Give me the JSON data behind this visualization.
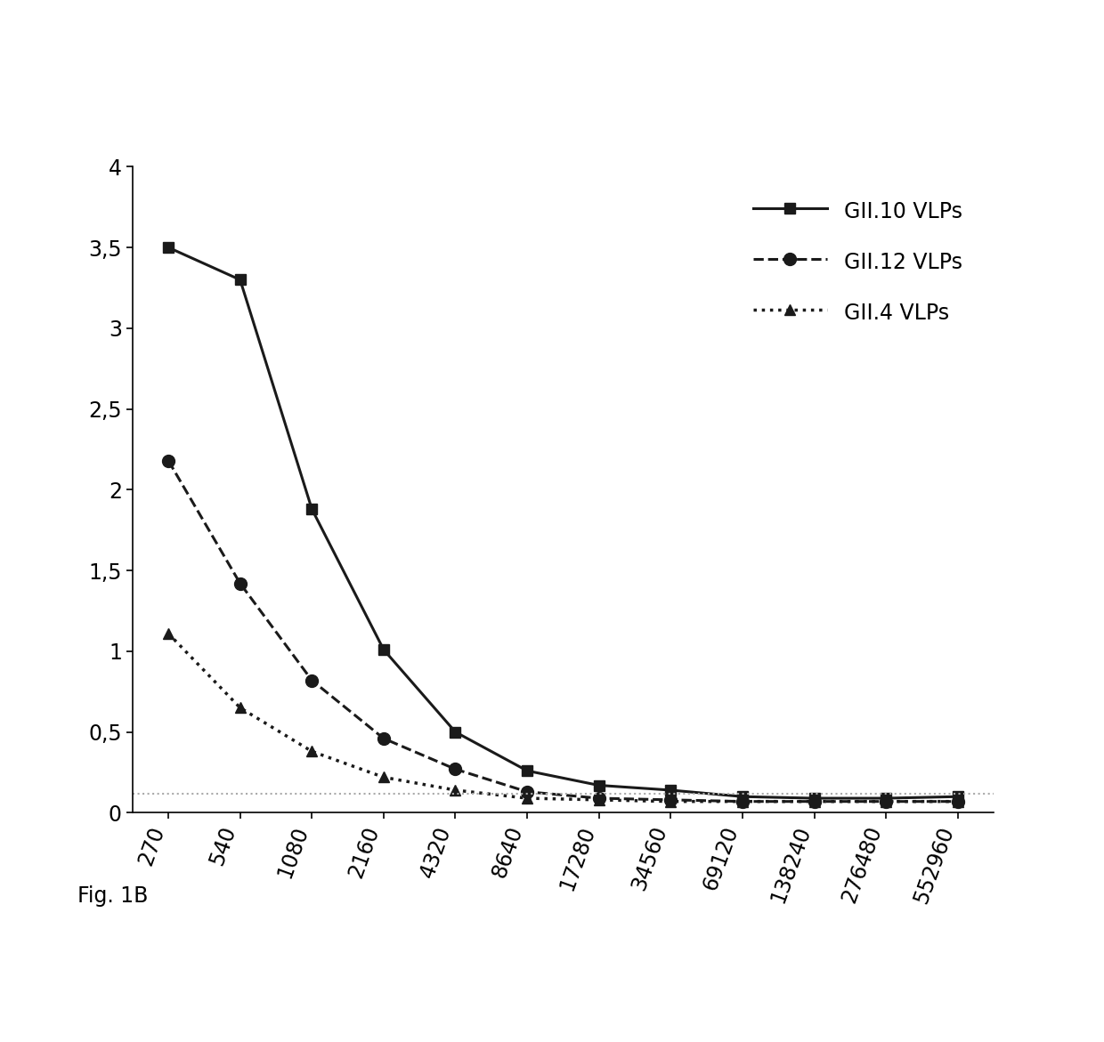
{
  "x_labels": [
    "270",
    "540",
    "1080",
    "2160",
    "4320",
    "8640",
    "17280",
    "34560",
    "69120",
    "138240",
    "276480",
    "552960"
  ],
  "x_values": [
    0,
    1,
    2,
    3,
    4,
    5,
    6,
    7,
    8,
    9,
    10,
    11
  ],
  "series": [
    {
      "label": "GII.10 VLPs",
      "y": [
        3.5,
        3.3,
        1.88,
        1.01,
        0.5,
        0.26,
        0.17,
        0.14,
        0.1,
        0.09,
        0.09,
        0.1
      ],
      "linestyle": "-",
      "marker": "s",
      "markersize": 9,
      "linewidth": 2.2,
      "color": "#1a1a1a"
    },
    {
      "label": "GII.12 VLPs",
      "y": [
        2.18,
        1.42,
        0.82,
        0.46,
        0.27,
        0.13,
        0.09,
        0.08,
        0.07,
        0.07,
        0.07,
        0.07
      ],
      "linestyle": "--",
      "marker": "o",
      "markersize": 10,
      "linewidth": 2.2,
      "color": "#1a1a1a"
    },
    {
      "label": "GII.4 VLPs",
      "y": [
        1.11,
        0.65,
        0.38,
        0.22,
        0.14,
        0.09,
        0.08,
        0.07,
        0.07,
        0.07,
        0.07,
        0.07
      ],
      "linestyle": ":",
      "marker": "^",
      "markersize": 9,
      "linewidth": 2.5,
      "color": "#1a1a1a"
    }
  ],
  "hline_y": 0.12,
  "hline_color": "#aaaaaa",
  "hline_style": ":",
  "ylim": [
    0,
    4.0
  ],
  "yticks": [
    0,
    0.5,
    1.0,
    1.5,
    2.0,
    2.5,
    3.0,
    3.5,
    4.0
  ],
  "ytick_labels": [
    "0",
    "0,5",
    "1",
    "1,5",
    "2",
    "2,5",
    "3",
    "3,5",
    "4"
  ],
  "fig_caption": "Fig. 1B",
  "background_color": "#ffffff",
  "legend_fontsize": 17,
  "tick_fontsize": 17,
  "caption_fontsize": 17
}
